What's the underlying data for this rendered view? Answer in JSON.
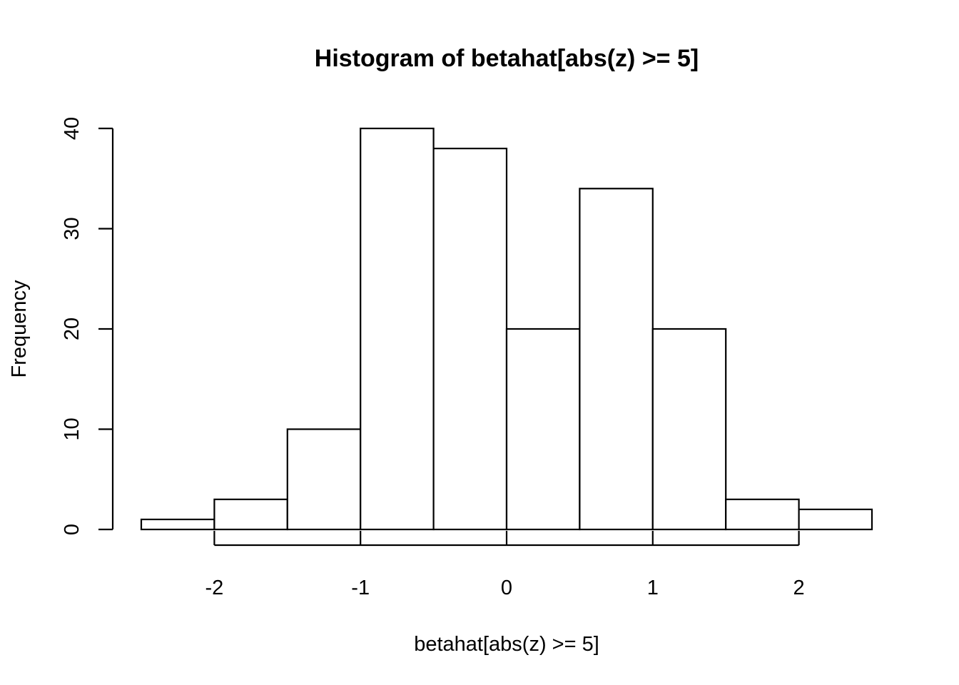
{
  "chart_data": {
    "type": "bar",
    "subtype": "histogram",
    "title": "Histogram of betahat[abs(z) >= 5]",
    "xlabel": "betahat[abs(z) >= 5]",
    "ylabel": "Frequency",
    "bins": [
      {
        "start": -2.5,
        "end": -2.0,
        "count": 1
      },
      {
        "start": -2.0,
        "end": -1.5,
        "count": 3
      },
      {
        "start": -1.5,
        "end": -1.0,
        "count": 10
      },
      {
        "start": -1.0,
        "end": -0.5,
        "count": 40
      },
      {
        "start": -0.5,
        "end": 0.0,
        "count": 38
      },
      {
        "start": 0.0,
        "end": 0.5,
        "count": 20
      },
      {
        "start": 0.5,
        "end": 1.0,
        "count": 34
      },
      {
        "start": 1.0,
        "end": 1.5,
        "count": 20
      },
      {
        "start": 1.5,
        "end": 2.0,
        "count": 3
      },
      {
        "start": 2.0,
        "end": 2.5,
        "count": 2
      }
    ],
    "xlim": [
      -2.5,
      2.5
    ],
    "ylim": [
      0,
      40
    ],
    "x_ticks": [
      {
        "value": -2,
        "label": "-2"
      },
      {
        "value": -1,
        "label": "-1"
      },
      {
        "value": 0,
        "label": "0"
      },
      {
        "value": 1,
        "label": "1"
      },
      {
        "value": 2,
        "label": "2"
      }
    ],
    "y_ticks": [
      {
        "value": 0,
        "label": "0"
      },
      {
        "value": 10,
        "label": "10"
      },
      {
        "value": 20,
        "label": "20"
      },
      {
        "value": 30,
        "label": "30"
      },
      {
        "value": 40,
        "label": "40"
      }
    ],
    "bar_fill": "#ffffff",
    "bar_stroke": "#000000",
    "grid": false,
    "legend": "none"
  }
}
